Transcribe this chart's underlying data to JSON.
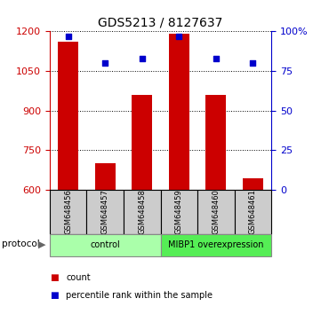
{
  "title": "GDS5213 / 8127637",
  "samples": [
    "GSM648456",
    "GSM648457",
    "GSM648458",
    "GSM648459",
    "GSM648460",
    "GSM648461"
  ],
  "counts": [
    1160,
    700,
    960,
    1190,
    960,
    645
  ],
  "percentiles": [
    97,
    80,
    83,
    97,
    83,
    80
  ],
  "left_ylim": [
    600,
    1200
  ],
  "left_yticks": [
    600,
    750,
    900,
    1050,
    1200
  ],
  "right_ylim": [
    0,
    100
  ],
  "right_yticks": [
    0,
    25,
    50,
    75,
    100
  ],
  "right_yticklabels": [
    "0",
    "25",
    "50",
    "75",
    "100%"
  ],
  "bar_color": "#cc0000",
  "scatter_color": "#0000cc",
  "bar_bottom": 600,
  "groups": [
    {
      "label": "control",
      "start": 0,
      "end": 3,
      "color": "#aaffaa"
    },
    {
      "label": "MIBP1 overexpression",
      "start": 3,
      "end": 6,
      "color": "#55ee55"
    }
  ],
  "protocol_label": "protocol",
  "legend_items": [
    {
      "label": "count",
      "color": "#cc0000"
    },
    {
      "label": "percentile rank within the sample",
      "color": "#0000cc"
    }
  ],
  "axis_color_left": "#cc0000",
  "axis_color_right": "#0000cc",
  "title_fontsize": 10,
  "tick_fontsize": 8,
  "bar_width": 0.55,
  "sample_box_color": "#cccccc",
  "bg_color": "#ffffff"
}
